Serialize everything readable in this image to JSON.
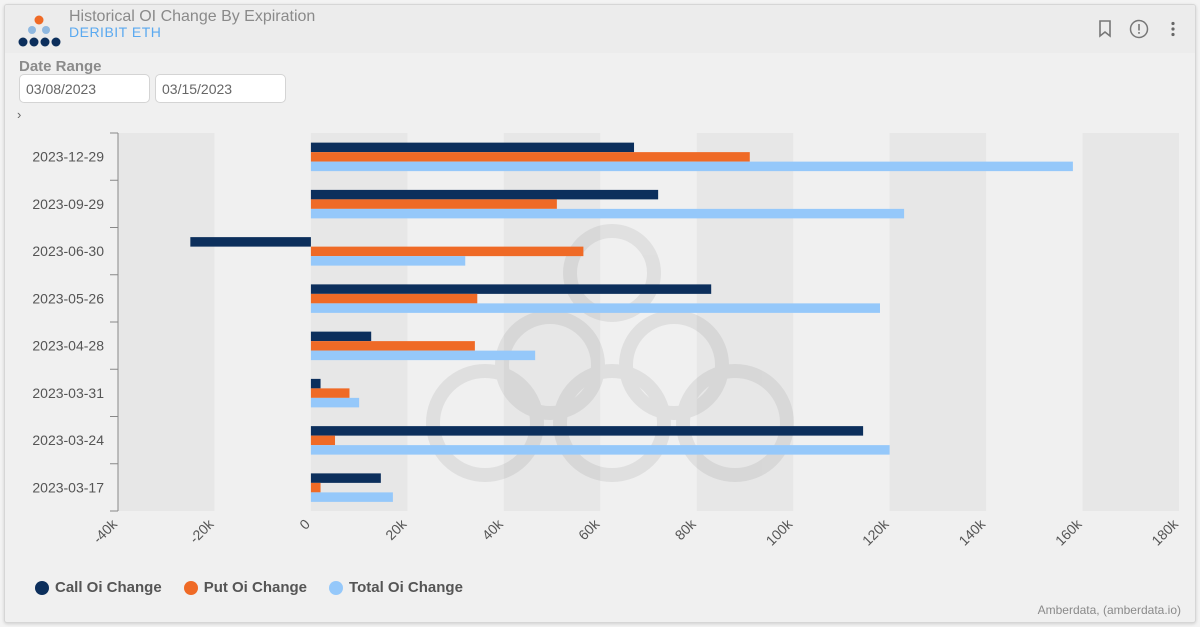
{
  "header": {
    "title": "Historical OI Change By Expiration",
    "subtitle": "DERIBIT ETH"
  },
  "filters": {
    "date_range_label": "Date Range",
    "start_date": "03/08/2023",
    "end_date": "03/15/2023",
    "expand_glyph": "›"
  },
  "icons": {
    "bookmark": "bookmark-icon",
    "info": "info-icon",
    "menu": "more-vertical-icon"
  },
  "colors": {
    "call": "#0c2f5c",
    "put": "#ef6a26",
    "total": "#95c8fa",
    "subtitle": "#5aa9f0"
  },
  "chart_data": {
    "type": "bar",
    "orientation": "horizontal",
    "title": "Historical OI Change By Expiration",
    "categories": [
      "2023-12-29",
      "2023-09-29",
      "2023-06-30",
      "2023-05-26",
      "2023-04-28",
      "2023-03-31",
      "2023-03-24",
      "2023-03-17"
    ],
    "series": [
      {
        "name": "Call Oi Change",
        "values": [
          67000,
          72000,
          -25000,
          83000,
          12500,
          2000,
          114500,
          14500
        ]
      },
      {
        "name": "Put Oi Change",
        "values": [
          91000,
          51000,
          56500,
          34500,
          34000,
          8000,
          5000,
          2000
        ]
      },
      {
        "name": "Total Oi Change",
        "values": [
          158000,
          123000,
          32000,
          118000,
          46500,
          10000,
          120000,
          17000
        ]
      }
    ],
    "xlim": [
      -40000,
      180000
    ],
    "x_ticks": [
      "-40k",
      "-20k",
      "0",
      "20k",
      "40k",
      "60k",
      "80k",
      "100k",
      "120k",
      "140k",
      "160k",
      "180k"
    ],
    "grid": "alternating vertical bands",
    "legend_position": "bottom-left"
  },
  "footer": {
    "credit": "Amberdata, (amberdata.io)"
  }
}
